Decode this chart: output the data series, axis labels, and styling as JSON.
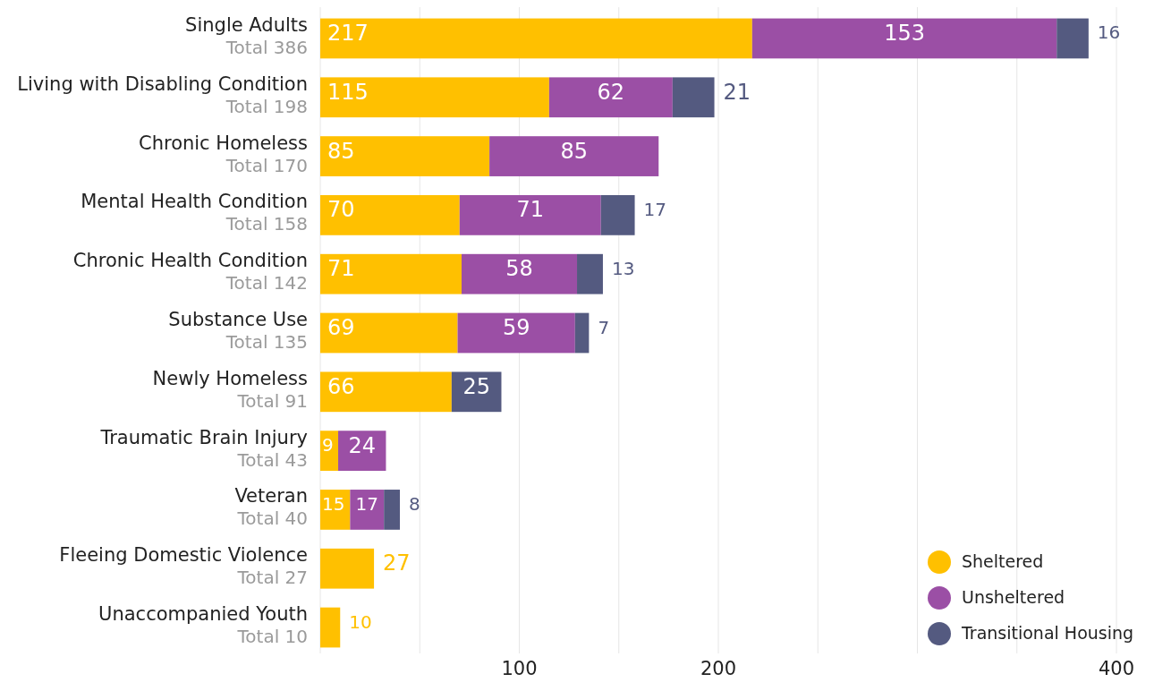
{
  "chart_data": {
    "type": "bar",
    "orientation": "horizontal",
    "stacked": true,
    "data_labels": true,
    "grid": "x",
    "legend": "bottom right",
    "categories": [
      "Single Adults",
      "Living with Disabling Condition",
      "Chronic Homeless",
      "Mental Health Condition",
      "Chronic Health Condition",
      "Substance Use",
      "Newly Homeless",
      "Traumatic Brain Injury",
      "Veteran",
      "Fleeing Domestic Violence",
      "Unaccompanied Youth"
    ],
    "totals": [
      "Total 386",
      "Total 198",
      "Total 170",
      "Total 158",
      "Total 142",
      "Total 135",
      "Total 91",
      "Total 43",
      "Total 40",
      "Total 27",
      "Total 10"
    ],
    "series": [
      {
        "name": "Sheltered",
        "color": "#ffc000",
        "values": [
          217,
          115,
          85,
          70,
          71,
          69,
          66,
          9,
          15,
          27,
          10
        ]
      },
      {
        "name": "Unsheltered",
        "color": "#9b4fa5",
        "values": [
          153,
          62,
          85,
          71,
          58,
          59,
          null,
          24,
          17,
          null,
          null
        ]
      },
      {
        "name": "Transitional Housing",
        "color": "#545a80",
        "values": [
          16,
          21,
          null,
          17,
          13,
          7,
          25,
          null,
          8,
          null,
          null
        ]
      }
    ],
    "xlim": [
      0,
      400
    ],
    "xticks": [
      {
        "value": 0,
        "label": null
      },
      {
        "value": 50,
        "label": null
      },
      100,
      {
        "value": 150,
        "label": null
      },
      200,
      {
        "value": 250,
        "label": null
      },
      {
        "value": 300,
        "label": null
      },
      {
        "value": 350,
        "label": null
      },
      400
    ]
  }
}
